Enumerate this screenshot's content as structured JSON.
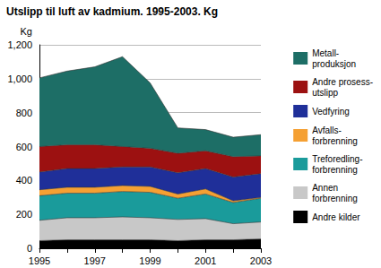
{
  "chart_data": {
    "type": "area",
    "title": "Utslipp til luft av kadmium. 1995-2003. Kg",
    "y_label": "Kg",
    "categories": [
      "1995",
      null,
      "1997",
      null,
      "1999",
      null,
      "2001",
      null,
      "2003"
    ],
    "series": [
      {
        "name": "Andre kilder",
        "color": "#000000",
        "values": [
          45,
          50,
          50,
          50,
          50,
          45,
          50,
          50,
          55
        ]
      },
      {
        "name": "Annen\nforbrenning",
        "color": "#c8c8c8",
        "values": [
          120,
          130,
          130,
          135,
          130,
          125,
          125,
          95,
          100
        ]
      },
      {
        "name": "Treforedling-\nforbrenning",
        "color": "#1a9b9b",
        "values": [
          145,
          145,
          145,
          150,
          150,
          125,
          145,
          125,
          140
        ]
      },
      {
        "name": "Avfalls-\nforbrenning",
        "color": "#f5a033",
        "values": [
          35,
          35,
          35,
          35,
          35,
          25,
          30,
          10,
          5
        ]
      },
      {
        "name": "Vedfyring",
        "color": "#1f2f99",
        "values": [
          105,
          110,
          110,
          110,
          115,
          125,
          120,
          140,
          140
        ]
      },
      {
        "name": "Andre prosess-\nutslipp",
        "color": "#9c1111",
        "values": [
          150,
          140,
          140,
          120,
          110,
          115,
          105,
          120,
          105
        ]
      },
      {
        "name": "Metall-\nproduksjon",
        "color": "#1d6e66",
        "values": [
          405,
          435,
          460,
          530,
          385,
          150,
          125,
          115,
          125
        ]
      }
    ],
    "ylim": [
      0,
      1200
    ],
    "yticks": [
      0,
      200,
      400,
      600,
      800,
      1000,
      1200
    ],
    "stacked": true,
    "grid": true,
    "legend": "right"
  }
}
